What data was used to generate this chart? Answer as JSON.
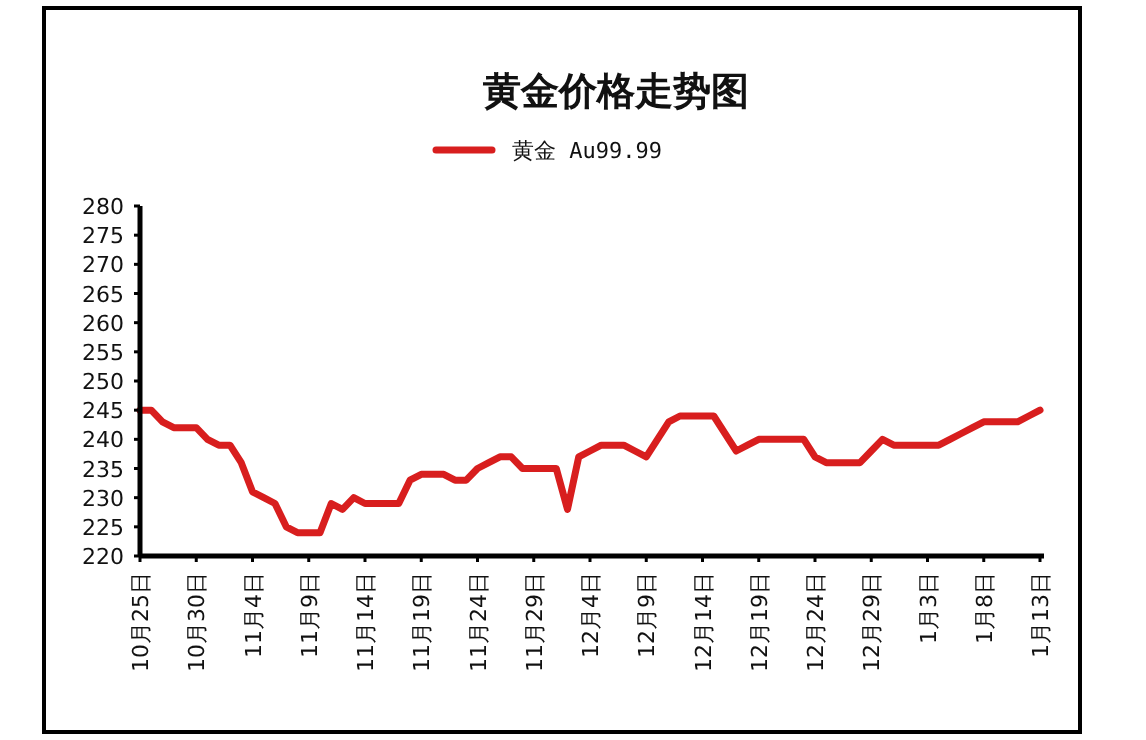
{
  "chart_data": {
    "type": "line",
    "title": "黄金价格走势图",
    "legend": "top",
    "categories": [
      "10月25日",
      null,
      null,
      null,
      null,
      "10月30日",
      null,
      null,
      null,
      null,
      "11月4日",
      null,
      null,
      null,
      null,
      "11月9日",
      null,
      null,
      null,
      null,
      "11月14日",
      null,
      null,
      null,
      null,
      "11月19日",
      null,
      null,
      null,
      null,
      "11月24日",
      null,
      null,
      null,
      null,
      "11月29日",
      null,
      null,
      null,
      null,
      "12月4日",
      null,
      null,
      null,
      null,
      "12月9日",
      null,
      null,
      null,
      null,
      "12月14日",
      null,
      null,
      null,
      null,
      "12月19日",
      null,
      null,
      null,
      null,
      "12月24日",
      null,
      null,
      null,
      null,
      "12月29日",
      null,
      null,
      null,
      null,
      "1月3日",
      null,
      null,
      null,
      null,
      "1月8日",
      null,
      null,
      null,
      null,
      "1月13日"
    ],
    "series": [
      {
        "name": "黄金 Au99.99",
        "color": "#d81e1e",
        "values": [
          245,
          245,
          243,
          242,
          242,
          242,
          240,
          239,
          239,
          236,
          231,
          230,
          229,
          225,
          224,
          224,
          224,
          229,
          228,
          230,
          229,
          229,
          229,
          229,
          233,
          234,
          234,
          234,
          233,
          233,
          235,
          236,
          237,
          237,
          235,
          235,
          235,
          235,
          228,
          237,
          238,
          239,
          239,
          239,
          238,
          237,
          240,
          243,
          244,
          244,
          244,
          244,
          241,
          238,
          239,
          240,
          240,
          240,
          240,
          240,
          237,
          236,
          236,
          236,
          236,
          238,
          240,
          239,
          239,
          239,
          239,
          239,
          240,
          241,
          242,
          243,
          243,
          243,
          243,
          244,
          245
        ]
      }
    ],
    "ylim": [
      220,
      280
    ],
    "yticks": [
      220,
      225,
      230,
      235,
      240,
      245,
      250,
      255,
      260,
      265,
      270,
      275,
      280
    ]
  }
}
